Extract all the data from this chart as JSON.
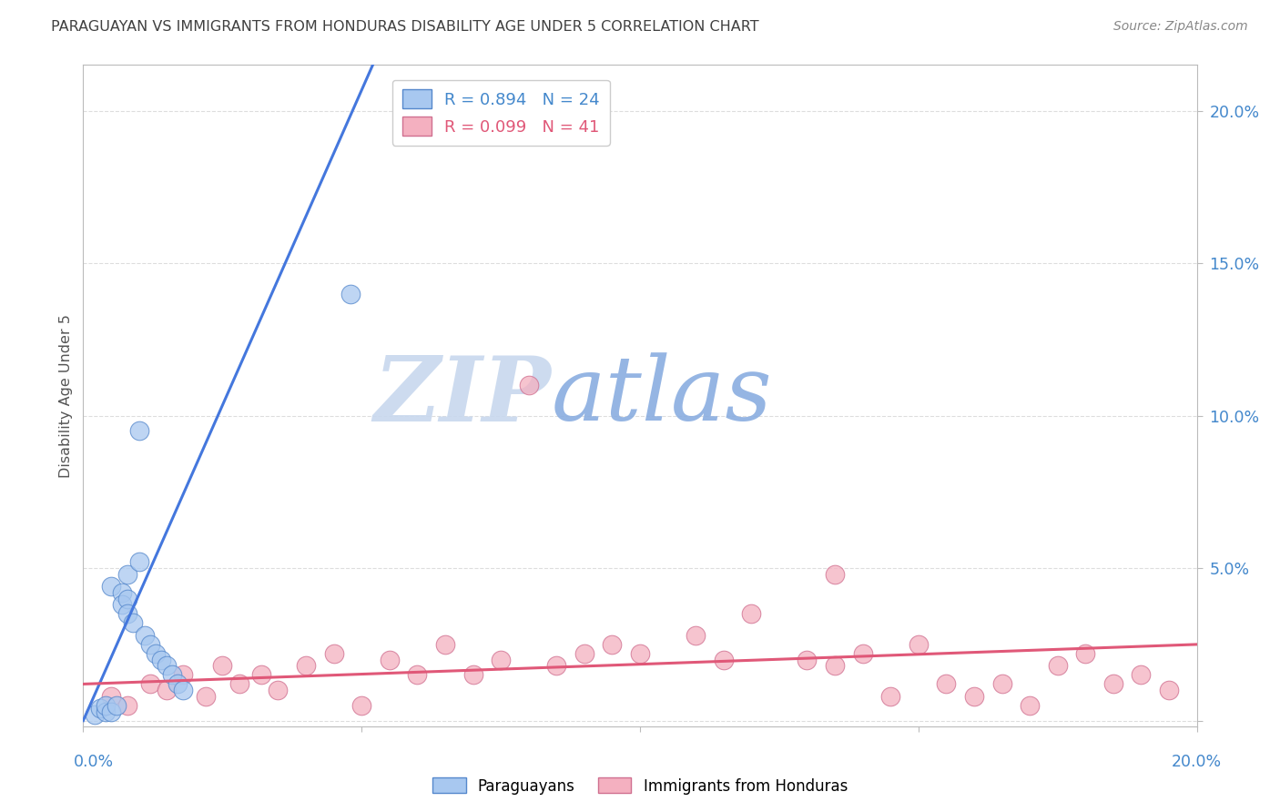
{
  "title": "PARAGUAYAN VS IMMIGRANTS FROM HONDURAS DISABILITY AGE UNDER 5 CORRELATION CHART",
  "source": "Source: ZipAtlas.com",
  "ylabel": "Disability Age Under 5",
  "xlim": [
    0.0,
    0.2
  ],
  "ylim": [
    -0.002,
    0.215
  ],
  "yticks": [
    0.0,
    0.05,
    0.1,
    0.15,
    0.2
  ],
  "ytick_labels": [
    "",
    "5.0%",
    "10.0%",
    "15.0%",
    "20.0%"
  ],
  "xticks": [
    0.0,
    0.05,
    0.1,
    0.15,
    0.2
  ],
  "watermark_zip": "ZIP",
  "watermark_atlas": "atlas",
  "legend_entries": [
    {
      "label": "R = 0.894   N = 24",
      "color": "#b8d4f0"
    },
    {
      "label": "R = 0.099   N = 41",
      "color": "#f4b8c8"
    }
  ],
  "paraguayan_x": [
    0.002,
    0.003,
    0.004,
    0.004,
    0.005,
    0.005,
    0.006,
    0.007,
    0.007,
    0.008,
    0.008,
    0.009,
    0.01,
    0.011,
    0.012,
    0.013,
    0.014,
    0.015,
    0.016,
    0.017,
    0.018,
    0.008,
    0.01,
    0.048
  ],
  "paraguayan_y": [
    0.002,
    0.004,
    0.003,
    0.005,
    0.003,
    0.044,
    0.005,
    0.042,
    0.038,
    0.04,
    0.035,
    0.032,
    0.095,
    0.028,
    0.025,
    0.022,
    0.02,
    0.018,
    0.015,
    0.012,
    0.01,
    0.048,
    0.052,
    0.14
  ],
  "honduras_x": [
    0.005,
    0.008,
    0.012,
    0.015,
    0.018,
    0.022,
    0.025,
    0.028,
    0.032,
    0.035,
    0.04,
    0.045,
    0.05,
    0.055,
    0.06,
    0.065,
    0.07,
    0.075,
    0.08,
    0.085,
    0.09,
    0.095,
    0.1,
    0.11,
    0.115,
    0.12,
    0.13,
    0.135,
    0.14,
    0.145,
    0.15,
    0.155,
    0.16,
    0.165,
    0.17,
    0.175,
    0.18,
    0.185,
    0.19,
    0.195,
    0.135
  ],
  "honduras_y": [
    0.008,
    0.005,
    0.012,
    0.01,
    0.015,
    0.008,
    0.018,
    0.012,
    0.015,
    0.01,
    0.018,
    0.022,
    0.005,
    0.02,
    0.015,
    0.025,
    0.015,
    0.02,
    0.11,
    0.018,
    0.022,
    0.025,
    0.022,
    0.028,
    0.02,
    0.035,
    0.02,
    0.018,
    0.022,
    0.008,
    0.025,
    0.012,
    0.008,
    0.012,
    0.005,
    0.018,
    0.022,
    0.012,
    0.015,
    0.01,
    0.048
  ],
  "paraguayan_trend_x": [
    0.0,
    0.052
  ],
  "paraguayan_trend_y": [
    0.0,
    0.215
  ],
  "honduras_trend_x": [
    0.0,
    0.2
  ],
  "honduras_trend_y": [
    0.012,
    0.025
  ],
  "blue_color": "#a8c8f0",
  "blue_edge": "#5588cc",
  "pink_color": "#f4b0c0",
  "pink_edge": "#d07090",
  "blue_line": "#4477dd",
  "pink_line": "#e05878",
  "title_color": "#404040",
  "source_color": "#888888",
  "tick_color": "#4488cc",
  "grid_color": "#dddddd",
  "axis_color": "#bbbbbb",
  "ylabel_color": "#555555",
  "watermark_zip_color": "#c8d8ee",
  "watermark_atlas_color": "#8aade0"
}
